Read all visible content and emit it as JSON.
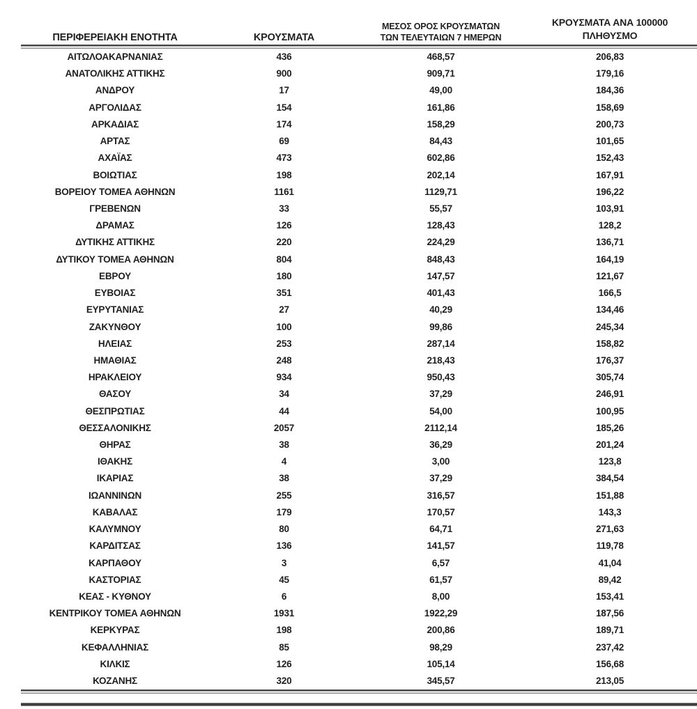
{
  "colors": {
    "text": "#1f1f1f",
    "rule_dark": "#454545",
    "rule_light": "#8f8f8f",
    "background": "#ffffff"
  },
  "table": {
    "columns": [
      {
        "label": "ΠΕΡΙΦΕΡΕΙΑΚΗ ΕΝΟΤΗΤΑ"
      },
      {
        "label": "ΚΡΟΥΣΜΑΤΑ"
      },
      {
        "line1": "ΜΕΣΟΣ ΟΡΟΣ ΚΡΟΥΣΜΑΤΩΝ",
        "line2": "ΤΩΝ ΤΕΛΕΥΤΑΙΩΝ 7 ΗΜΕΡΩΝ"
      },
      {
        "line1": "ΚΡΟΥΣΜΑΤΑ ΑΝΑ 100000",
        "line2": "ΠΛΗΘΥΣΜΟ"
      }
    ],
    "rows": [
      [
        "ΑΙΤΩΛΟΑΚΑΡΝΑΝΙΑΣ",
        "436",
        "468,57",
        "206,83"
      ],
      [
        "ΑΝΑΤΟΛΙΚΗΣ ΑΤΤΙΚΗΣ",
        "900",
        "909,71",
        "179,16"
      ],
      [
        "ΑΝΔΡΟΥ",
        "17",
        "49,00",
        "184,36"
      ],
      [
        "ΑΡΓΟΛΙΔΑΣ",
        "154",
        "161,86",
        "158,69"
      ],
      [
        "ΑΡΚΑΔΙΑΣ",
        "174",
        "158,29",
        "200,73"
      ],
      [
        "ΑΡΤΑΣ",
        "69",
        "84,43",
        "101,65"
      ],
      [
        "ΑΧΑΪΑΣ",
        "473",
        "602,86",
        "152,43"
      ],
      [
        "ΒΟΙΩΤΙΑΣ",
        "198",
        "202,14",
        "167,91"
      ],
      [
        "ΒΟΡΕΙΟΥ ΤΟΜΕΑ ΑΘΗΝΩΝ",
        "1161",
        "1129,71",
        "196,22"
      ],
      [
        "ΓΡΕΒΕΝΩΝ",
        "33",
        "55,57",
        "103,91"
      ],
      [
        "ΔΡΑΜΑΣ",
        "126",
        "128,43",
        "128,2"
      ],
      [
        "ΔΥΤΙΚΗΣ ΑΤΤΙΚΗΣ",
        "220",
        "224,29",
        "136,71"
      ],
      [
        "ΔΥΤΙΚΟΥ ΤΟΜΕΑ ΑΘΗΝΩΝ",
        "804",
        "848,43",
        "164,19"
      ],
      [
        "ΕΒΡΟΥ",
        "180",
        "147,57",
        "121,67"
      ],
      [
        "ΕΥΒΟΙΑΣ",
        "351",
        "401,43",
        "166,5"
      ],
      [
        "ΕΥΡΥΤΑΝΙΑΣ",
        "27",
        "40,29",
        "134,46"
      ],
      [
        "ΖΑΚΥΝΘΟΥ",
        "100",
        "99,86",
        "245,34"
      ],
      [
        "ΗΛΕΙΑΣ",
        "253",
        "287,14",
        "158,82"
      ],
      [
        "ΗΜΑΘΙΑΣ",
        "248",
        "218,43",
        "176,37"
      ],
      [
        "ΗΡΑΚΛΕΙΟΥ",
        "934",
        "950,43",
        "305,74"
      ],
      [
        "ΘΑΣΟΥ",
        "34",
        "37,29",
        "246,91"
      ],
      [
        "ΘΕΣΠΡΩΤΙΑΣ",
        "44",
        "54,00",
        "100,95"
      ],
      [
        "ΘΕΣΣΑΛΟΝΙΚΗΣ",
        "2057",
        "2112,14",
        "185,26"
      ],
      [
        "ΘΗΡΑΣ",
        "38",
        "36,29",
        "201,24"
      ],
      [
        "ΙΘΑΚΗΣ",
        "4",
        "3,00",
        "123,8"
      ],
      [
        "ΙΚΑΡΙΑΣ",
        "38",
        "37,29",
        "384,54"
      ],
      [
        "ΙΩΑΝΝΙΝΩΝ",
        "255",
        "316,57",
        "151,88"
      ],
      [
        "ΚΑΒΑΛΑΣ",
        "179",
        "170,57",
        "143,3"
      ],
      [
        "ΚΑΛΥΜΝΟΥ",
        "80",
        "64,71",
        "271,63"
      ],
      [
        "ΚΑΡΔΙΤΣΑΣ",
        "136",
        "141,57",
        "119,78"
      ],
      [
        "ΚΑΡΠΑΘΟΥ",
        "3",
        "6,57",
        "41,04"
      ],
      [
        "ΚΑΣΤΟΡΙΑΣ",
        "45",
        "61,57",
        "89,42"
      ],
      [
        "ΚΕΑΣ - ΚΥΘΝΟΥ",
        "6",
        "8,00",
        "153,41"
      ],
      [
        "ΚΕΝΤΡΙΚΟΥ ΤΟΜΕΑ ΑΘΗΝΩΝ",
        "1931",
        "1922,29",
        "187,56"
      ],
      [
        "ΚΕΡΚΥΡΑΣ",
        "198",
        "200,86",
        "189,71"
      ],
      [
        "ΚΕΦΑΛΛΗΝΙΑΣ",
        "85",
        "98,29",
        "237,42"
      ],
      [
        "ΚΙΛΚΙΣ",
        "126",
        "105,14",
        "156,68"
      ],
      [
        "ΚΟΖΑΝΗΣ",
        "320",
        "345,57",
        "213,05"
      ]
    ]
  }
}
